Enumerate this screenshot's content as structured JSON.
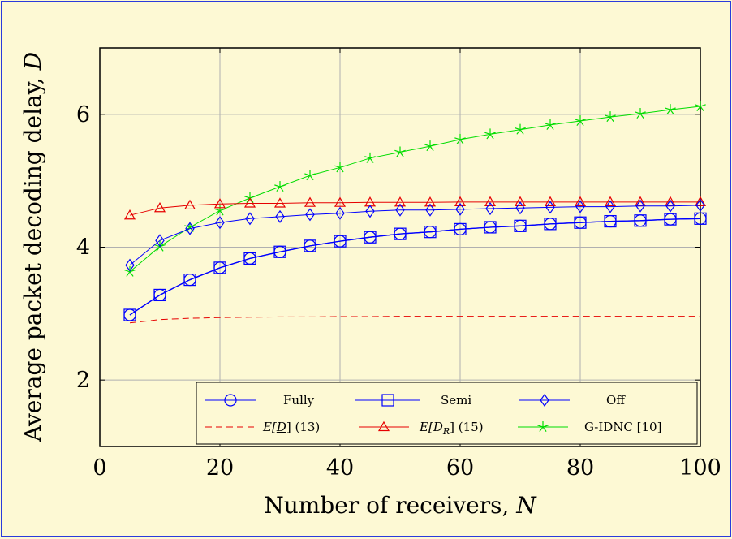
{
  "chart_data": {
    "type": "line",
    "title": "",
    "xlabel": "Number of receivers, N",
    "ylabel": "Average packet decoding delay, D",
    "xlim": [
      0,
      100
    ],
    "ylim": [
      1,
      7
    ],
    "xticks": [
      0,
      20,
      40,
      60,
      80,
      100
    ],
    "yticks": [
      2,
      4,
      6
    ],
    "grid": true,
    "legend_position": "bottom-right",
    "x": [
      5,
      10,
      15,
      20,
      25,
      30,
      35,
      40,
      45,
      50,
      55,
      60,
      65,
      70,
      75,
      80,
      85,
      90,
      95,
      100
    ],
    "series": [
      {
        "name": "Fully",
        "color": "#0000ff",
        "marker": "circle",
        "dash": "solid",
        "values": [
          2.98,
          3.28,
          3.51,
          3.69,
          3.83,
          3.93,
          4.02,
          4.09,
          4.15,
          4.2,
          4.23,
          4.27,
          4.3,
          4.32,
          4.35,
          4.37,
          4.39,
          4.4,
          4.42,
          4.43
        ]
      },
      {
        "name": "Semi",
        "color": "#0000ff",
        "marker": "square",
        "dash": "solid",
        "values": [
          2.98,
          3.28,
          3.51,
          3.69,
          3.83,
          3.93,
          4.02,
          4.09,
          4.15,
          4.2,
          4.23,
          4.27,
          4.3,
          4.32,
          4.35,
          4.37,
          4.39,
          4.4,
          4.42,
          4.43
        ]
      },
      {
        "name": "Off",
        "color": "#0000ff",
        "marker": "diamond",
        "dash": "solid",
        "values": [
          3.73,
          4.1,
          4.28,
          4.37,
          4.43,
          4.46,
          4.49,
          4.51,
          4.54,
          4.56,
          4.56,
          4.57,
          4.58,
          4.59,
          4.6,
          4.61,
          4.61,
          4.62,
          4.62,
          4.63
        ]
      },
      {
        "name": "E[D] (13)",
        "color": "#e60000",
        "marker": "none",
        "dash": "dashed",
        "values": [
          2.86,
          2.91,
          2.93,
          2.94,
          2.945,
          2.95,
          2.95,
          2.955,
          2.955,
          2.96,
          2.96,
          2.96,
          2.96,
          2.96,
          2.96,
          2.96,
          2.96,
          2.96,
          2.96,
          2.96
        ]
      },
      {
        "name": "E[D_R] (15)",
        "color": "#e60000",
        "marker": "triangle",
        "dash": "solid",
        "values": [
          4.48,
          4.59,
          4.63,
          4.65,
          4.66,
          4.66,
          4.67,
          4.67,
          4.675,
          4.675,
          4.675,
          4.68,
          4.68,
          4.68,
          4.68,
          4.68,
          4.68,
          4.68,
          4.68,
          4.68
        ]
      },
      {
        "name": "G-IDNC [10]",
        "color": "#00dd00",
        "marker": "star",
        "dash": "solid",
        "values": [
          3.63,
          4.01,
          4.3,
          4.55,
          4.74,
          4.91,
          5.08,
          5.2,
          5.34,
          5.43,
          5.52,
          5.62,
          5.7,
          5.77,
          5.84,
          5.9,
          5.96,
          6.01,
          6.07,
          6.12
        ]
      }
    ],
    "legend": [
      {
        "label": "Fully",
        "series": 0
      },
      {
        "label": "Semi",
        "series": 1
      },
      {
        "label": "Off",
        "series": 2
      },
      {
        "label": "E[D] (13)",
        "series": 3
      },
      {
        "label": "E[D_R] (15)",
        "series": 4
      },
      {
        "label": "G-IDNC [10]",
        "series": 5
      }
    ],
    "legend_text": {
      "fully": "Fully",
      "semi": "Semi",
      "off": "Off",
      "ed_prefix": "E[",
      "ed_var": "D",
      "ed_suffix": "] (13)",
      "edr_prefix": "E[",
      "edr_var": "D",
      "edr_sub": "R",
      "edr_suffix": "] (15)",
      "gidnc": "G-IDNC [10]"
    },
    "axis_text": {
      "xlabel_text": "Number of receivers, ",
      "xlabel_var": "N",
      "ylabel_text": "Average packet decoding delay, ",
      "ylabel_var": "D"
    },
    "colors": {
      "background": "#fdf9d4",
      "frame": "#2a3bdc",
      "grid": "#b0b0b0",
      "plot_bg": "#fdf9d4"
    }
  }
}
